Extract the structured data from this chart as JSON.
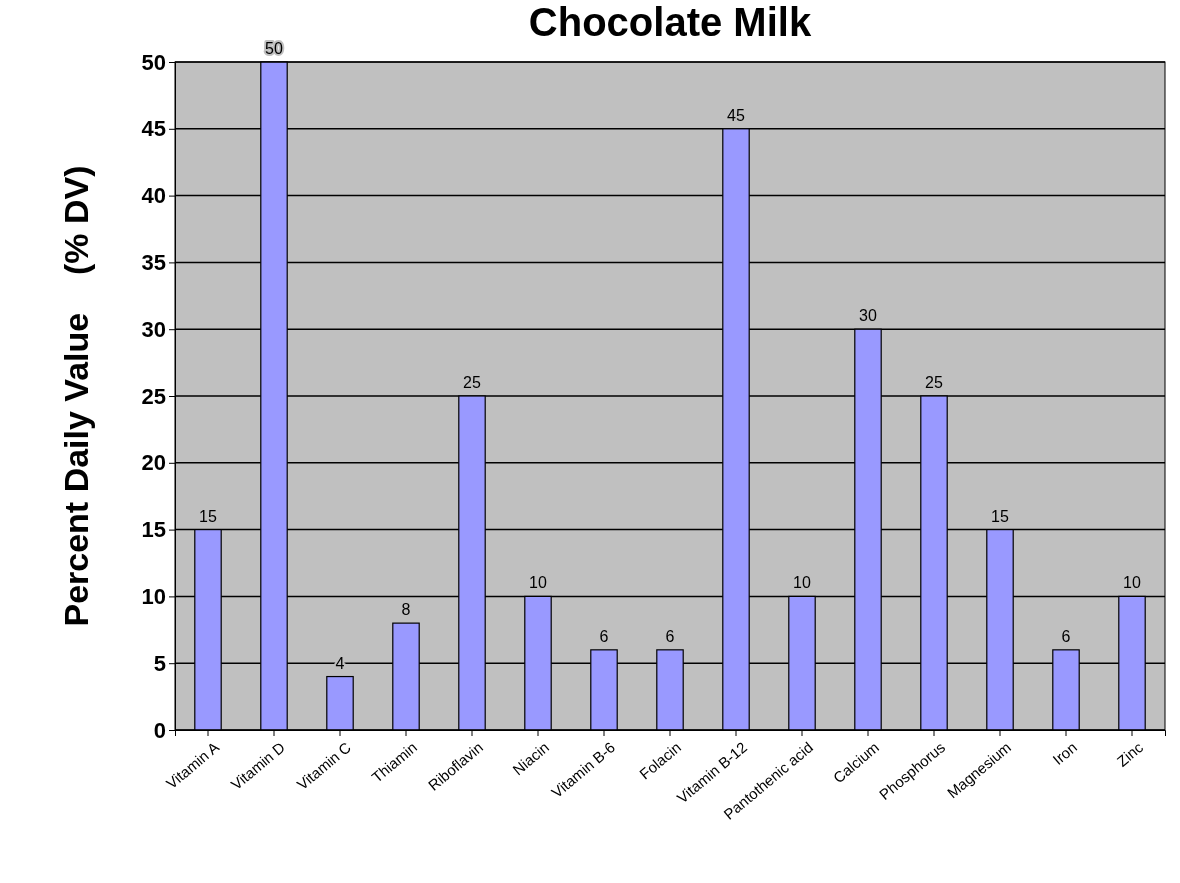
{
  "chart_data": {
    "type": "bar",
    "title": "Chocolate Milk",
    "ylabel": "Percent Daily Value    (% DV)",
    "categories": [
      "Vitamin A",
      "Vitamin D",
      "Vitamin C",
      "Thiamin",
      "Riboflavin",
      "Niacin",
      "Vitamin B-6",
      "Folacin",
      "Vitamin B-12",
      "Pantothenic acid",
      "Calcium",
      "Phosphorus",
      "Magnesium",
      "Iron",
      "Zinc"
    ],
    "values": [
      15,
      50,
      4,
      8,
      25,
      10,
      6,
      6,
      45,
      10,
      30,
      25,
      15,
      6,
      10
    ],
    "color": "#9999ff",
    "ylim": [
      0,
      50
    ],
    "yticks": [
      0,
      5,
      10,
      15,
      20,
      25,
      30,
      35,
      40,
      45,
      50
    ],
    "grid": "y",
    "data_labels": true
  }
}
